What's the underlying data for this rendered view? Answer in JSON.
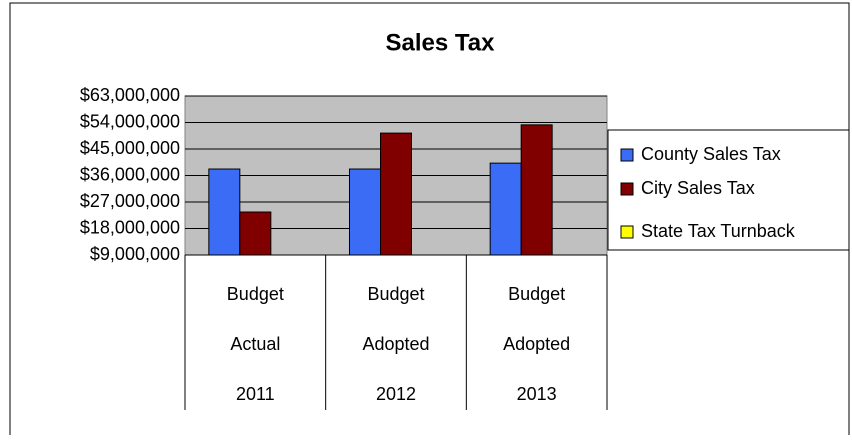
{
  "chart_data": {
    "type": "bar",
    "title": "Sales Tax",
    "categories": [
      [
        "Budget",
        "Actual",
        "2011"
      ],
      [
        "Budget",
        "Adopted",
        "2012"
      ],
      [
        "Budget",
        "Adopted",
        "2013"
      ]
    ],
    "series": [
      {
        "name": "County Sales Tax",
        "color": "#3b6cf5",
        "values": [
          38200000,
          38200000,
          40200000
        ]
      },
      {
        "name": "City Sales Tax",
        "color": "#800000",
        "values": [
          23600000,
          50400000,
          53200000
        ]
      },
      {
        "name": "State Tax Turnback",
        "color": "#ffff00",
        "values": [
          null,
          null,
          null
        ]
      }
    ],
    "ylim": [
      9000000,
      63000000
    ],
    "yticks": [
      {
        "value": 9000000,
        "label": "$9,000,000"
      },
      {
        "value": 18000000,
        "label": "$18,000,000"
      },
      {
        "value": 27000000,
        "label": "$27,000,000"
      },
      {
        "value": 36000000,
        "label": "$36,000,000"
      },
      {
        "value": 45000000,
        "label": "$45,000,000"
      },
      {
        "value": 54000000,
        "label": "$54,000,000"
      },
      {
        "value": 63000000,
        "label": "$63,000,000"
      }
    ],
    "grid": true,
    "legend": "right"
  }
}
